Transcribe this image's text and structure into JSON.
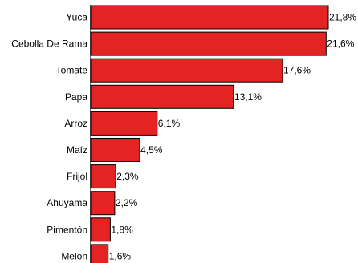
{
  "chart_data": {
    "type": "bar",
    "orientation": "horizontal",
    "categories": [
      "Yuca",
      "Cebolla De Rama",
      "Tomate",
      "Papa",
      "Arroz",
      "Maíz",
      "Frijol",
      "Ahuyama",
      "Pimentón",
      "Melón"
    ],
    "values": [
      21.8,
      21.6,
      17.6,
      13.1,
      6.1,
      4.5,
      2.3,
      2.2,
      1.8,
      1.6
    ],
    "value_labels": [
      "21,8%",
      "21,6%",
      "17,6%",
      "13,1%",
      "6,1%",
      "4,5%",
      "2,3%",
      "2,2%",
      "1,8%",
      "1,6%"
    ],
    "unit": "%",
    "xlim": [
      0,
      21.8
    ],
    "grid": false,
    "legend": "none",
    "bar_color": "#e42323",
    "bar_stroke": "#000000"
  }
}
